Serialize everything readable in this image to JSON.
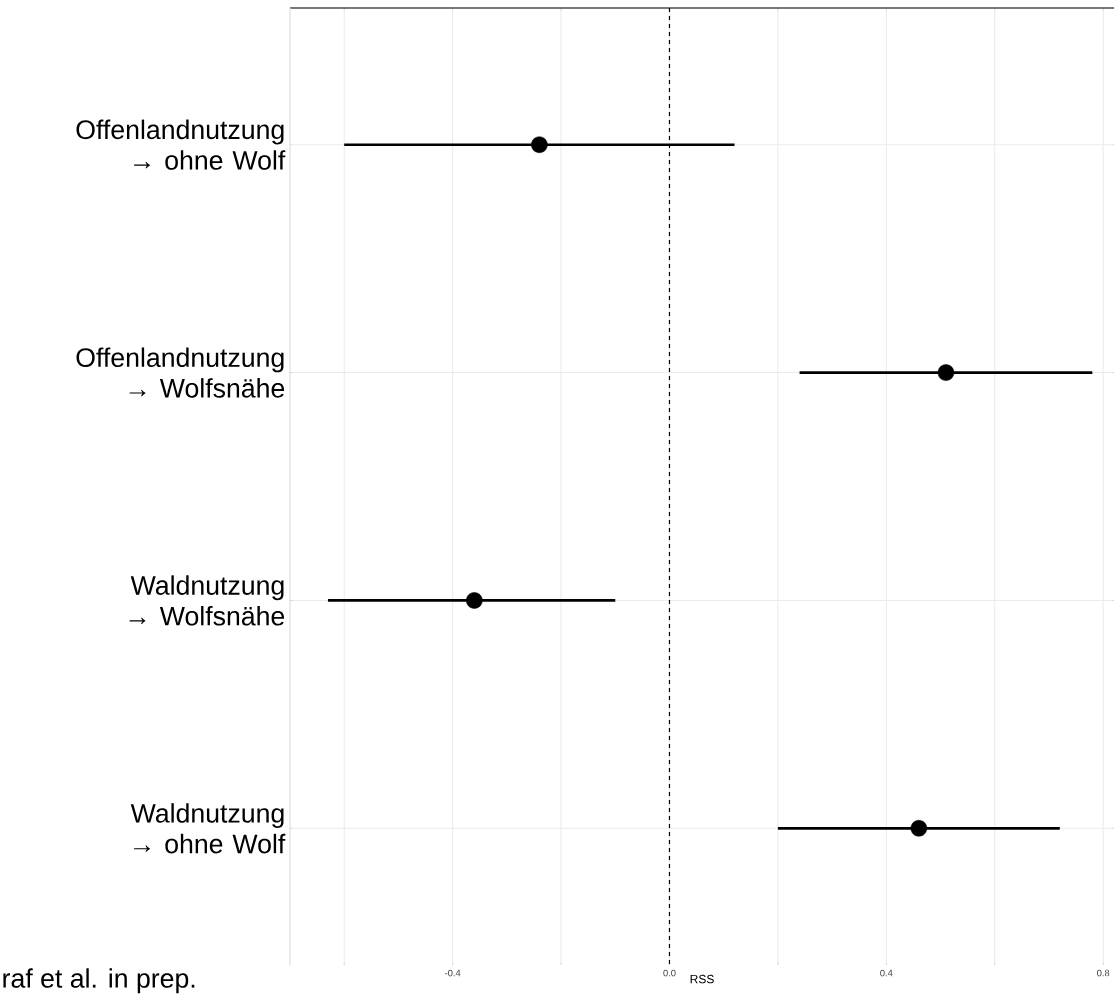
{
  "chart_data": {
    "type": "scatter",
    "orientation": "horizontal",
    "xlabel": "RSS",
    "categories": [
      "Offenlandnutzung → ohne Wolf",
      "Offenlandnutzung → Wolfsnähe",
      "Waldnutzung → Wolfsnähe",
      "Waldnutzung → ohne Wolf"
    ],
    "values": [
      -0.24,
      0.51,
      -0.36,
      0.46
    ],
    "errors": [
      [
        -0.6,
        0.12
      ],
      [
        0.24,
        0.78
      ],
      [
        -0.63,
        -0.1
      ],
      [
        0.2,
        0.72
      ]
    ],
    "color": "#000000",
    "line_style": "solid",
    "xlim": [
      -0.7,
      0.82
    ],
    "xticks": [
      {
        "value": -0.6,
        "label": null
      },
      -0.4,
      {
        "value": -0.2,
        "label": null
      },
      {
        "value": 0,
        "label": "0.0"
      },
      {
        "value": 0.2,
        "label": null
      },
      0.4,
      {
        "value": 0.6,
        "label": null
      },
      0.8
    ],
    "grid": true,
    "ref_lines": [
      {
        "axis": "x",
        "value": 0,
        "line_style": "dashed"
      }
    ],
    "annotations": [
      "raf et al. in prep."
    ]
  }
}
